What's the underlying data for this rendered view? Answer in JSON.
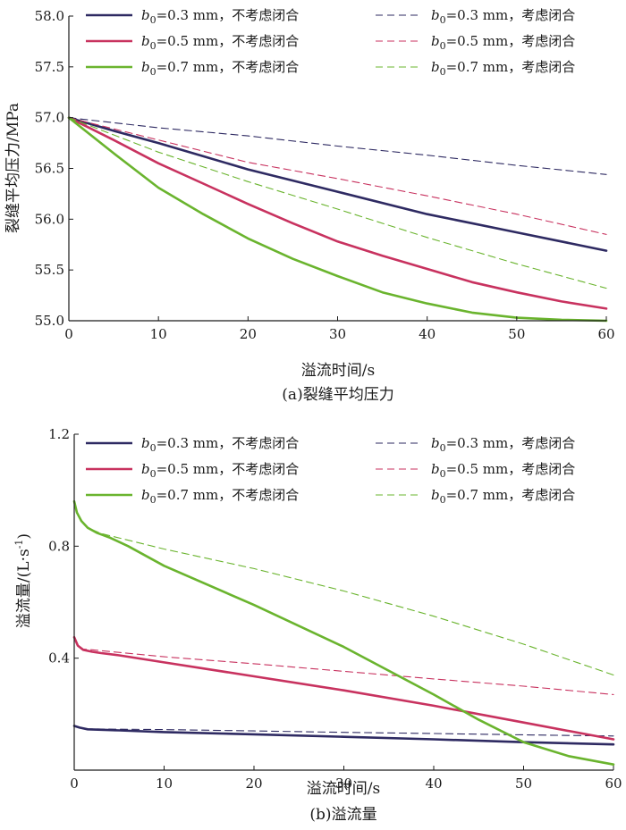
{
  "chart_data": [
    {
      "type": "line",
      "caption": "(a)裂缝平均压力",
      "xlabel": "溢流时间/s",
      "ylabel": "裂缝平均压力/MPa",
      "xlim": [
        0,
        60
      ],
      "ylim": [
        55.0,
        58.0
      ],
      "xticks": [
        "0",
        "10",
        "20",
        "30",
        "40",
        "50",
        "60"
      ],
      "yticks": [
        "55.0",
        "55.5",
        "56.0",
        "56.5",
        "57.0",
        "57.5",
        "58.0"
      ],
      "legend": "top",
      "grid": false,
      "series": [
        {
          "name": "=0.3 mm，不考虑闭合",
          "legend_lead": "b",
          "legend_sub": "0",
          "color": "#2e2a62",
          "dash": "solid",
          "x": [
            0,
            5,
            10,
            15,
            20,
            30,
            40,
            50,
            60
          ],
          "y": [
            57.0,
            56.87,
            56.75,
            56.62,
            56.49,
            56.27,
            56.05,
            55.87,
            55.69
          ]
        },
        {
          "name": "=0.3 mm，考虑闭合",
          "legend_lead": "b",
          "legend_sub": "0",
          "color": "#2e2a62",
          "dash": "dashed",
          "x": [
            0,
            10,
            20,
            30,
            40,
            50,
            60
          ],
          "y": [
            57.0,
            56.9,
            56.82,
            56.72,
            56.63,
            56.53,
            56.44
          ]
        },
        {
          "name": "=0.5 mm，不考虑闭合",
          "legend_lead": "b",
          "legend_sub": "0",
          "color": "#c8325f",
          "dash": "solid",
          "x": [
            0,
            5,
            10,
            15,
            20,
            25,
            30,
            35,
            40,
            45,
            50,
            55,
            60
          ],
          "y": [
            57.0,
            56.78,
            56.55,
            56.35,
            56.15,
            55.96,
            55.78,
            55.64,
            55.51,
            55.38,
            55.28,
            55.19,
            55.12
          ]
        },
        {
          "name": "=0.5 mm，考虑闭合",
          "legend_lead": "b",
          "legend_sub": "0",
          "color": "#c8325f",
          "dash": "dashed",
          "x": [
            0,
            10,
            20,
            30,
            40,
            50,
            60
          ],
          "y": [
            57.0,
            56.78,
            56.56,
            56.4,
            56.23,
            56.05,
            55.85
          ]
        },
        {
          "name": "=0.7 mm，不考虑闭合",
          "legend_lead": "b",
          "legend_sub": "0",
          "color": "#6ab42e",
          "dash": "solid",
          "x": [
            0,
            5,
            10,
            15,
            20,
            25,
            30,
            35,
            40,
            45,
            50,
            55,
            60
          ],
          "y": [
            57.0,
            56.65,
            56.31,
            56.05,
            55.81,
            55.61,
            55.44,
            55.28,
            55.17,
            55.08,
            55.03,
            55.01,
            55.0
          ]
        },
        {
          "name": "=0.7 mm，考虑闭合",
          "legend_lead": "b",
          "legend_sub": "0",
          "color": "#6ab42e",
          "dash": "dashed",
          "x": [
            0,
            10,
            20,
            30,
            40,
            50,
            60
          ],
          "y": [
            57.0,
            56.66,
            56.37,
            56.1,
            55.82,
            55.56,
            55.32
          ]
        }
      ]
    },
    {
      "type": "line",
      "caption": "(b)溢流量",
      "xlabel": "溢流时间/s",
      "ylabel_main": "溢流量/(L·s",
      "ylabel_sup": "-1",
      "ylabel_close": ")",
      "xlim": [
        0,
        60
      ],
      "ylim": [
        0.0,
        1.2
      ],
      "xticks": [
        "0",
        "10",
        "20",
        "30",
        "40",
        "50",
        "60"
      ],
      "ytick_values": [
        0.4,
        0.8,
        1.2
      ],
      "yticks": [
        "0.4",
        "0.8",
        "1.2"
      ],
      "legend": "top",
      "grid": false,
      "series": [
        {
          "name": "=0.3 mm，不考虑闭合",
          "legend_lead": "b",
          "legend_sub": "0",
          "color": "#2e2a62",
          "dash": "solid",
          "x": [
            0,
            0.6,
            1.5,
            5,
            10,
            20,
            30,
            40,
            50,
            60
          ],
          "y": [
            0.158,
            0.152,
            0.146,
            0.142,
            0.136,
            0.128,
            0.119,
            0.11,
            0.1,
            0.092
          ]
        },
        {
          "name": "=0.3 mm，考虑闭合",
          "legend_lead": "b",
          "legend_sub": "0",
          "color": "#2e2a62",
          "dash": "dashed",
          "x": [
            0,
            0.6,
            1.5,
            10,
            20,
            30,
            40,
            50,
            60
          ],
          "y": [
            0.158,
            0.152,
            0.147,
            0.145,
            0.14,
            0.135,
            0.131,
            0.126,
            0.122
          ]
        },
        {
          "name": "=0.5 mm，不考虑闭合",
          "legend_lead": "b",
          "legend_sub": "0",
          "color": "#c8325f",
          "dash": "solid",
          "x": [
            0,
            0.4,
            1,
            2,
            3,
            5,
            10,
            20,
            30,
            40,
            50,
            60
          ],
          "y": [
            0.475,
            0.445,
            0.43,
            0.423,
            0.418,
            0.41,
            0.385,
            0.335,
            0.285,
            0.23,
            0.17,
            0.11
          ]
        },
        {
          "name": "=0.5 mm，考虑闭合",
          "legend_lead": "b",
          "legend_sub": "0",
          "color": "#c8325f",
          "dash": "dashed",
          "x": [
            0,
            0.4,
            1,
            2,
            10,
            20,
            30,
            40,
            50,
            60
          ],
          "y": [
            0.475,
            0.445,
            0.432,
            0.43,
            0.405,
            0.38,
            0.353,
            0.326,
            0.3,
            0.27
          ]
        },
        {
          "name": "=0.7 mm，不考虑闭合",
          "legend_lead": "b",
          "legend_sub": "0",
          "color": "#6ab42e",
          "dash": "solid",
          "x": [
            0,
            0.3,
            0.8,
            1.5,
            2.5,
            4,
            6,
            10,
            20,
            30,
            40,
            45,
            50,
            55,
            60
          ],
          "y": [
            0.96,
            0.92,
            0.89,
            0.866,
            0.848,
            0.83,
            0.8,
            0.73,
            0.59,
            0.44,
            0.27,
            0.18,
            0.1,
            0.05,
            0.02
          ]
        },
        {
          "name": "=0.7 mm，考虑闭合",
          "legend_lead": "b",
          "legend_sub": "0",
          "color": "#6ab42e",
          "dash": "dashed",
          "x": [
            0,
            0.3,
            0.8,
            1.5,
            3,
            10,
            20,
            30,
            40,
            50,
            60
          ],
          "y": [
            0.96,
            0.92,
            0.89,
            0.866,
            0.845,
            0.79,
            0.72,
            0.64,
            0.55,
            0.45,
            0.34
          ]
        }
      ]
    }
  ]
}
